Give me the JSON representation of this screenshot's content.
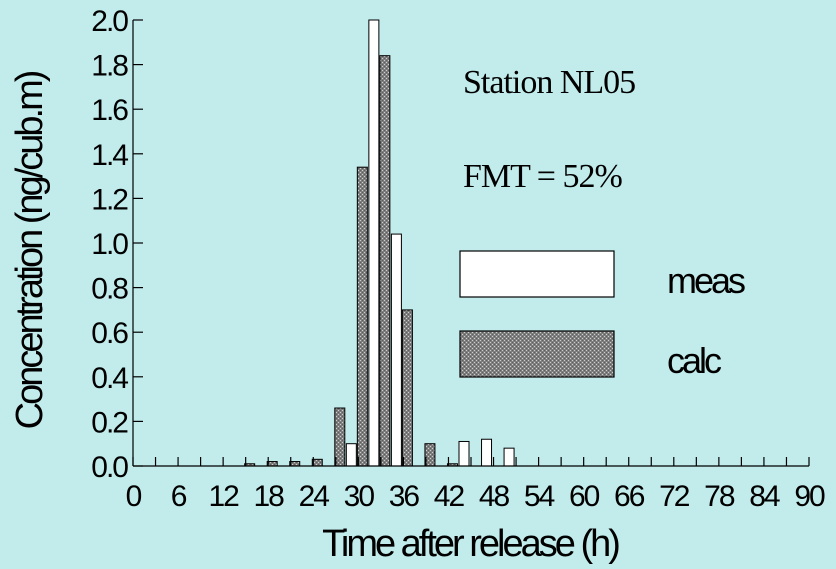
{
  "chart_data": {
    "type": "bar",
    "xlabel": "Time after release (h)",
    "ylabel": "Concentration (ng/cub.m)",
    "xlim": [
      0,
      90
    ],
    "ylim": [
      0,
      2.0
    ],
    "x_ticks": [
      0,
      6,
      12,
      18,
      24,
      30,
      36,
      42,
      48,
      54,
      60,
      66,
      72,
      78,
      84,
      90
    ],
    "y_ticks": [
      "0.0",
      "0.2",
      "0.4",
      "0.6",
      "0.8",
      "1.0",
      "1.2",
      "1.4",
      "1.6",
      "1.8",
      "2.0"
    ],
    "grid": false,
    "legend_position": "right",
    "annotations": [
      "Station NL05",
      "FMT = 52%"
    ],
    "series": [
      {
        "name": "meas",
        "color": "#ffffff",
        "points": [
          {
            "x": 30,
            "y": 0.1
          },
          {
            "x": 33,
            "y": 2.0
          },
          {
            "x": 36,
            "y": 1.04
          },
          {
            "x": 45,
            "y": 0.11
          },
          {
            "x": 48,
            "y": 0.12
          },
          {
            "x": 51,
            "y": 0.08
          }
        ]
      },
      {
        "name": "calc",
        "color": "#8a8a8a",
        "points": [
          {
            "x": 15,
            "y": 0.01
          },
          {
            "x": 18,
            "y": 0.02
          },
          {
            "x": 21,
            "y": 0.02
          },
          {
            "x": 24,
            "y": 0.03
          },
          {
            "x": 27,
            "y": 0.26
          },
          {
            "x": 30,
            "y": 1.34
          },
          {
            "x": 33,
            "y": 1.84
          },
          {
            "x": 36,
            "y": 0.7
          },
          {
            "x": 39,
            "y": 0.1
          },
          {
            "x": 42,
            "y": 0.01
          }
        ]
      }
    ]
  }
}
